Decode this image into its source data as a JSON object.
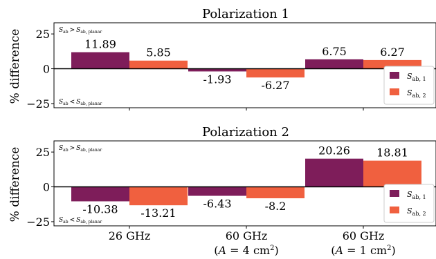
{
  "colors": {
    "s_ab_1": "#7e1d5a",
    "s_ab_2": "#f0603f",
    "axis": "#000000",
    "background": "#ffffff"
  },
  "chart_data": [
    {
      "type": "bar",
      "title": "Polarization 1",
      "ylabel": "% difference",
      "xlabel": "",
      "ylim": [
        -28,
        33
      ],
      "yticks": [
        -25,
        0,
        25
      ],
      "ytick_labels": [
        "−25",
        "0",
        "25"
      ],
      "categories": [
        "26 GHz",
        "60 GHz (A = 4 cm²)",
        "60 GHz (A = 1 cm²)"
      ],
      "series": [
        {
          "name": "S_ab, 1",
          "values": [
            11.89,
            -1.93,
            6.75
          ],
          "labels": [
            "11.89",
            "-1.93",
            "6.75"
          ]
        },
        {
          "name": "S_ab, 2",
          "values": [
            5.85,
            -6.27,
            6.27
          ],
          "labels": [
            "5.85",
            "-6.27",
            "6.27"
          ]
        }
      ],
      "annotations": {
        "upper": "S_ab > S_ab, planar",
        "lower": "S_ab < S_ab, planar"
      },
      "legend": "lower-right",
      "grid": false,
      "show_x_tick_labels": false
    },
    {
      "type": "bar",
      "title": "Polarization 2",
      "ylabel": "% difference",
      "xlabel": "",
      "ylim": [
        -28,
        33
      ],
      "yticks": [
        -25,
        0,
        25
      ],
      "ytick_labels": [
        "−25",
        "0",
        "25"
      ],
      "categories": [
        "26 GHz",
        "60 GHz (A = 4 cm²)",
        "60 GHz (A = 1 cm²)"
      ],
      "series": [
        {
          "name": "S_ab, 1",
          "values": [
            -10.38,
            -6.43,
            20.26
          ],
          "labels": [
            "-10.38",
            "-6.43",
            "20.26"
          ]
        },
        {
          "name": "S_ab, 2",
          "values": [
            -13.21,
            -8.2,
            18.81
          ],
          "labels": [
            "-13.21",
            "-8.2",
            "18.81"
          ]
        }
      ],
      "annotations": {
        "upper": "S_ab > S_ab, planar",
        "lower": "S_ab < S_ab, planar"
      },
      "legend": "lower-right",
      "grid": false,
      "show_x_tick_labels": true
    }
  ],
  "x_tick_text": [
    {
      "line1": "26 GHz",
      "line2": ""
    },
    {
      "line1": "60 GHz",
      "line2": "(A = 4 cm²)"
    },
    {
      "line1": "60 GHz",
      "line2": "(A = 1 cm²)"
    }
  ],
  "legend_labels": {
    "s1_main": "S",
    "s1_sub": "ab, 1",
    "s2_main": "S",
    "s2_sub": "ab, 2"
  },
  "notes": {
    "upper_main": "S",
    "upper_sub": "ab",
    "upper_rel": ">",
    "upper_main2": "S",
    "upper_sub2": "ab, planar",
    "lower_main": "S",
    "lower_sub": "ab",
    "lower_rel": "<",
    "lower_main2": "S",
    "lower_sub2": "ab, planar"
  }
}
